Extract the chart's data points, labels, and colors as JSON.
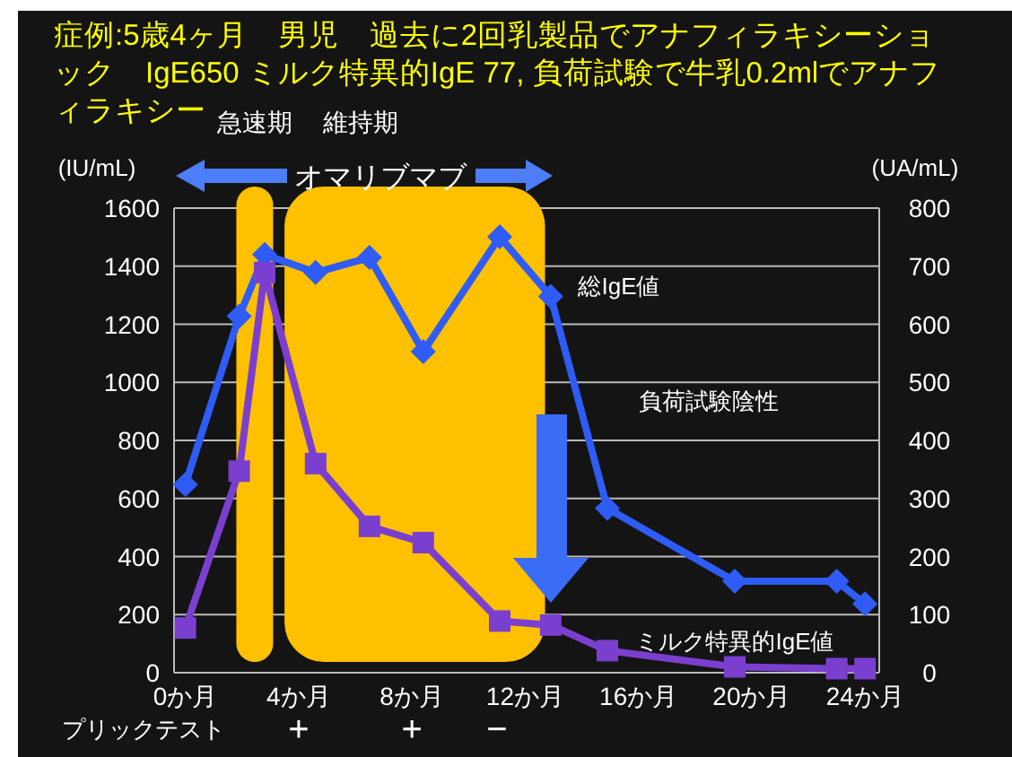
{
  "chart_data": {
    "type": "line",
    "title": "症例:5歳4ヶ月　男児　過去に2回乳製品でアナフィラキシーショック　IgE650 ミルク特異的IgE 77, 負荷試験で牛乳0.2mlでアナフィラキシー",
    "ylabel": "(IU/mL)",
    "y2label": "(UA/mL)",
    "x": [
      0,
      1.9,
      2.8,
      4.6,
      6.5,
      8.4,
      11.1,
      12.9,
      14.9,
      19.4,
      23.0,
      24.0
    ],
    "series": [
      {
        "name": "総IgE値",
        "color": "#2e5cf5",
        "marker": "diamond",
        "values": [
          648,
          1228,
          1440,
          1378,
          1430,
          1106,
          1501,
          1296,
          566,
          315,
          315,
          237
        ]
      },
      {
        "name": "ミルク特異的IgE値",
        "color": "#7b3fd0",
        "marker": "square",
        "axis": "y2",
        "values": [
          77,
          347,
          689,
          360,
          252,
          224,
          89,
          82,
          38,
          10,
          7,
          7
        ]
      }
    ],
    "xlim": [
      -0.4,
      24.5
    ],
    "xticks": [
      {
        "value": 0,
        "label": "0か月"
      },
      {
        "value": 4,
        "label": "4か月"
      },
      {
        "value": 8,
        "label": "8か月"
      },
      {
        "value": 12,
        "label": "12か月"
      },
      {
        "value": 16,
        "label": "16か月"
      },
      {
        "value": 20,
        "label": "20か月"
      },
      {
        "value": 24,
        "label": "24か月"
      }
    ],
    "ylim": [
      0,
      1600
    ],
    "yticks": [
      0,
      200,
      400,
      600,
      800,
      1000,
      1200,
      1400,
      1600
    ],
    "y2lim": [
      0,
      800
    ],
    "y2ticks": [
      0,
      100,
      200,
      300,
      400,
      500,
      600,
      700,
      800
    ],
    "bands": [
      {
        "axis": "x",
        "from": 1.8,
        "to": 3.1,
        "label": "急速期",
        "color": "#ffc000"
      },
      {
        "axis": "x",
        "from": 3.5,
        "to": 12.7,
        "label": "維持期",
        "color": "#ffc000"
      }
    ],
    "annotations": [
      "オマリブマブ",
      "負荷試験陰性",
      "プリックテスト",
      "+",
      "+",
      "−"
    ],
    "grid": "y",
    "legend": false,
    "line_style": "solid"
  }
}
